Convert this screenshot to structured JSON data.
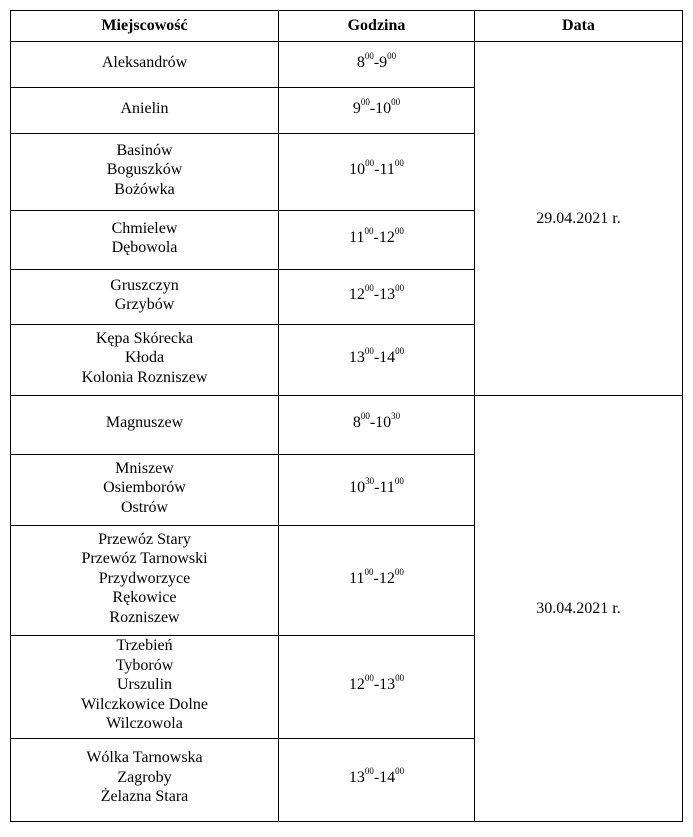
{
  "table": {
    "headers": [
      "Miejscowość",
      "Godzina",
      "Data"
    ],
    "groups": [
      {
        "date": "29.04.2021 r.",
        "rows": [
          {
            "places": [
              "Aleksandrów"
            ],
            "time": {
              "start_h": "8",
              "start_m": "00",
              "end_h": "9",
              "end_m": "00"
            }
          },
          {
            "places": [
              "Anielin"
            ],
            "time": {
              "start_h": "9",
              "start_m": "00",
              "end_h": "10",
              "end_m": "00"
            }
          },
          {
            "places": [
              "Basinów",
              "Boguszków",
              "Bożówka"
            ],
            "time": {
              "start_h": "10",
              "start_m": "00",
              "end_h": "11",
              "end_m": "00"
            }
          },
          {
            "places": [
              "Chmielew",
              "Dębowola"
            ],
            "time": {
              "start_h": "11",
              "start_m": "00",
              "end_h": "12",
              "end_m": "00"
            }
          },
          {
            "places": [
              "Gruszczyn",
              "Grzybów"
            ],
            "time": {
              "start_h": "12",
              "start_m": "00",
              "end_h": "13",
              "end_m": "00"
            }
          },
          {
            "places": [
              "Kępa Skórecka",
              "Kłoda",
              "Kolonia Rozniszew"
            ],
            "time": {
              "start_h": "13",
              "start_m": "00",
              "end_h": "14",
              "end_m": "00"
            }
          }
        ]
      },
      {
        "date": "30.04.2021 r.",
        "rows": [
          {
            "places": [
              "Magnuszew"
            ],
            "time": {
              "start_h": "8",
              "start_m": "00",
              "end_h": "10",
              "end_m": "30"
            }
          },
          {
            "places": [
              "Mniszew",
              "Osiemborów",
              "Ostrów"
            ],
            "time": {
              "start_h": "10",
              "start_m": "30",
              "end_h": "11",
              "end_m": "00"
            }
          },
          {
            "places": [
              "Przewóz Stary",
              "Przewóz Tarnowski",
              "Przydworzyce",
              "Rękowice",
              "Rozniszew"
            ],
            "time": {
              "start_h": "11",
              "start_m": "00",
              "end_h": "12",
              "end_m": "00"
            }
          },
          {
            "places": [
              "Trzebień",
              "Tyborów",
              "Urszulin",
              "Wilczkowice Dolne",
              "Wilczowola"
            ],
            "time": {
              "start_h": "12",
              "start_m": "00",
              "end_h": "13",
              "end_m": "00"
            }
          },
          {
            "places": [
              "Wólka Tarnowska",
              "Zagroby",
              "Żelazna Stara"
            ],
            "time": {
              "start_h": "13",
              "start_m": "00",
              "end_h": "14",
              "end_m": "00"
            }
          }
        ]
      }
    ]
  }
}
